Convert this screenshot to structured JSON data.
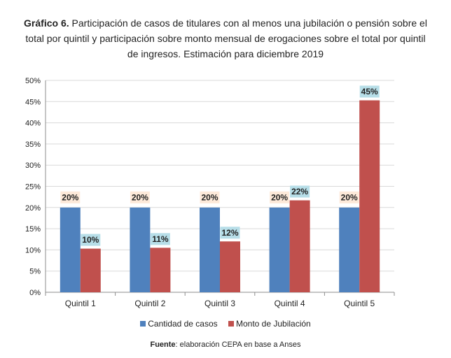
{
  "title": {
    "prefix": "Gráfico 6.",
    "line1": "Participación de casos de titulares con al menos una jubilación o pensión sobre el",
    "line2": "total por quintil y participación sobre monto mensual de erogaciones sobre el total por quintil",
    "line3": "de ingresos. Estimación para diciembre 2019"
  },
  "source": {
    "label": "Fuente",
    "text": ": elaboración CEPA en base a Anses"
  },
  "chart_data": {
    "type": "bar",
    "categories": [
      "Quintil 1",
      "Quintil 2",
      "Quintil 3",
      "Quintil 4",
      "Quintil 5"
    ],
    "series": [
      {
        "name": "Cantidad de casos",
        "values": [
          20,
          20,
          20,
          20,
          20
        ],
        "labels": [
          "20%",
          "20%",
          "20%",
          "20%",
          "20%"
        ],
        "color": "#4f81bd"
      },
      {
        "name": "Monto de Jubilación",
        "values": [
          10.3,
          10.5,
          12,
          21.7,
          45.3
        ],
        "labels": [
          "10%",
          "11%",
          "12%",
          "22%",
          "45%"
        ],
        "color": "#c0504d"
      }
    ],
    "ylim": [
      0,
      50
    ],
    "yticks": [
      "0%",
      "5%",
      "10%",
      "15%",
      "20%",
      "25%",
      "30%",
      "35%",
      "40%",
      "45%",
      "50%"
    ],
    "grid": true,
    "legend": "bottom",
    "label_box_colors": [
      "#fde9d9",
      "#b7dee8"
    ]
  }
}
